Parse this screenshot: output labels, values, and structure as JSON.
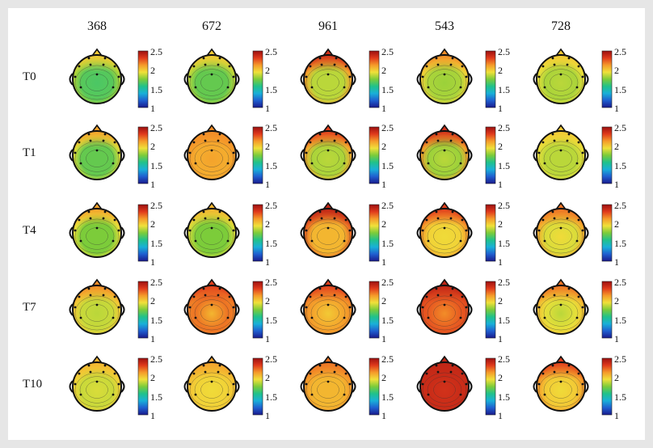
{
  "columns": [
    "368",
    "672",
    "961",
    "543",
    "728"
  ],
  "rows": [
    "T0",
    "T1",
    "T4",
    "T7",
    "T10"
  ],
  "colorbar": {
    "ticks": [
      "2.5",
      "2",
      "1.5",
      "1"
    ],
    "min": 1,
    "max": 2.5,
    "colormap": [
      "#1a1a8c",
      "#1f5fd0",
      "#19b0d8",
      "#21c28a",
      "#7ccc3a",
      "#f0e03a",
      "#f59a2a",
      "#e03a1c",
      "#9c1010"
    ]
  },
  "maps": [
    [
      {
        "front": 2.0,
        "center": 1.65,
        "back": 1.7
      },
      {
        "front": 2.0,
        "center": 1.7,
        "back": 1.7
      },
      {
        "front": 2.35,
        "center": 1.85,
        "back": 1.85
      },
      {
        "front": 2.15,
        "center": 1.8,
        "back": 1.85
      },
      {
        "front": 2.0,
        "center": 1.85,
        "back": 1.8
      }
    ],
    [
      {
        "front": 2.1,
        "center": 1.7,
        "back": 1.7
      },
      {
        "front": 2.15,
        "center": 2.1,
        "back": 2.05
      },
      {
        "front": 2.3,
        "center": 1.85,
        "back": 1.8
      },
      {
        "front": 2.35,
        "center": 1.85,
        "back": 1.75
      },
      {
        "front": 2.0,
        "center": 1.85,
        "back": 1.85
      }
    ],
    [
      {
        "front": 2.1,
        "center": 1.75,
        "back": 1.75
      },
      {
        "front": 2.05,
        "center": 1.75,
        "back": 1.75
      },
      {
        "front": 2.4,
        "center": 2.05,
        "back": 2.05
      },
      {
        "front": 2.3,
        "center": 1.95,
        "back": 2.0
      },
      {
        "front": 2.2,
        "center": 1.95,
        "back": 1.85
      }
    ],
    [
      {
        "front": 2.15,
        "center": 1.85,
        "back": 1.9
      },
      {
        "front": 2.3,
        "center": 2.05,
        "back": 2.35
      },
      {
        "front": 2.3,
        "center": 2.0,
        "back": 2.2
      },
      {
        "front": 2.4,
        "center": 2.15,
        "back": 2.35
      },
      {
        "front": 2.2,
        "center": 1.85,
        "back": 2.0
      }
    ],
    [
      {
        "front": 2.05,
        "center": 1.9,
        "back": 1.85
      },
      {
        "front": 2.1,
        "center": 1.95,
        "back": 2.0
      },
      {
        "front": 2.2,
        "center": 2.05,
        "back": 2.05
      },
      {
        "front": 2.4,
        "center": 2.35,
        "back": 2.4
      },
      {
        "front": 2.3,
        "center": 1.95,
        "back": 2.05
      }
    ]
  ]
}
